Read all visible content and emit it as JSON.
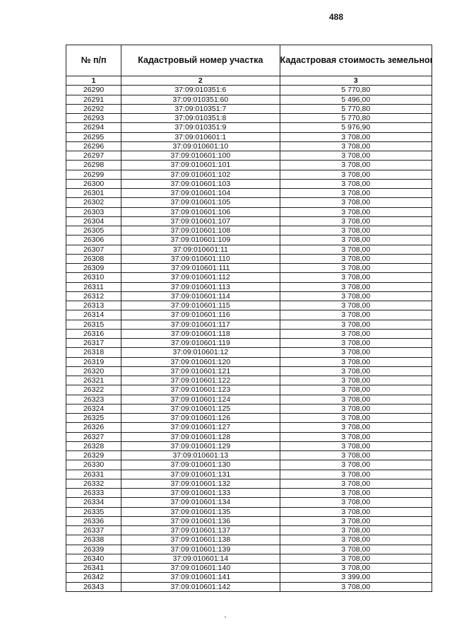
{
  "page_number": "488",
  "table": {
    "headers": [
      "№ п/п",
      "Кадастровый номер участка",
      "Кадастровая стоимость земельного участка, руб."
    ],
    "index_row": [
      "1",
      "2",
      "3"
    ],
    "rows": [
      [
        "26290",
        "37:09:010351:6",
        "5 770,80"
      ],
      [
        "26291",
        "37:09:010351:60",
        "5 496,00"
      ],
      [
        "26292",
        "37:09:010351:7",
        "5 770,80"
      ],
      [
        "26293",
        "37:09:010351:8",
        "5 770,80"
      ],
      [
        "26294",
        "37:09:010351:9",
        "5 976,90"
      ],
      [
        "26295",
        "37:09:010601:1",
        "3 708,00"
      ],
      [
        "26296",
        "37:09:010601:10",
        "3 708,00"
      ],
      [
        "26297",
        "37:09:010601:100",
        "3 708,00"
      ],
      [
        "26298",
        "37:09:010601:101",
        "3 708,00"
      ],
      [
        "26299",
        "37:09:010601:102",
        "3 708,00"
      ],
      [
        "26300",
        "37:09:010601:103",
        "3 708,00"
      ],
      [
        "26301",
        "37:09:010601:104",
        "3 708,00"
      ],
      [
        "26302",
        "37:09:010601:105",
        "3 708,00"
      ],
      [
        "26303",
        "37:09:010601:106",
        "3 708,00"
      ],
      [
        "26304",
        "37:09:010601:107",
        "3 708,00"
      ],
      [
        "26305",
        "37:09:010601:108",
        "3 708,00"
      ],
      [
        "26306",
        "37:09:010601:109",
        "3 708,00"
      ],
      [
        "26307",
        "37:09:010601:11",
        "3 708,00"
      ],
      [
        "26308",
        "37:09:010601:110",
        "3 708,00"
      ],
      [
        "26309",
        "37:09:010601:111",
        "3 708,00"
      ],
      [
        "26310",
        "37:09:010601:112",
        "3 708,00"
      ],
      [
        "26311",
        "37:09:010601:113",
        "3 708,00"
      ],
      [
        "26312",
        "37:09:010601:114",
        "3 708,00"
      ],
      [
        "26313",
        "37:09:010601:115",
        "3 708,00"
      ],
      [
        "26314",
        "37:09:010601:116",
        "3 708,00"
      ],
      [
        "26315",
        "37:09:010601:117",
        "3 708,00"
      ],
      [
        "26316",
        "37:09:010601:118",
        "3 708,00"
      ],
      [
        "26317",
        "37:09:010601:119",
        "3 708,00"
      ],
      [
        "26318",
        "37:09:010601:12",
        "3 708,00"
      ],
      [
        "26319",
        "37:09:010601:120",
        "3 708,00"
      ],
      [
        "26320",
        "37:09:010601:121",
        "3 708,00"
      ],
      [
        "26321",
        "37:09:010601:122",
        "3 708,00"
      ],
      [
        "26322",
        "37:09:010601:123",
        "3 708,00"
      ],
      [
        "26323",
        "37:09:010601:124",
        "3 708,00"
      ],
      [
        "26324",
        "37:09:010601:125",
        "3 708,00"
      ],
      [
        "26325",
        "37:09:010601:126",
        "3 708,00"
      ],
      [
        "26326",
        "37:09:010601:127",
        "3 708,00"
      ],
      [
        "26327",
        "37:09:010601:128",
        "3 708,00"
      ],
      [
        "26328",
        "37:09:010601:129",
        "3 708,00"
      ],
      [
        "26329",
        "37:09:010601:13",
        "3 708,00"
      ],
      [
        "26330",
        "37:09:010601:130",
        "3 708,00"
      ],
      [
        "26331",
        "37:09:010601:131",
        "3 708,00"
      ],
      [
        "26332",
        "37:09:010601:132",
        "3 708,00"
      ],
      [
        "26333",
        "37:09:010601:133",
        "3 708,00"
      ],
      [
        "26334",
        "37:09:010601:134",
        "3 708,00"
      ],
      [
        "26335",
        "37:09:010601:135",
        "3 708,00"
      ],
      [
        "26336",
        "37:09:010601:136",
        "3 708,00"
      ],
      [
        "26337",
        "37:09:010601:137",
        "3 708,00"
      ],
      [
        "26338",
        "37:09:010601:138",
        "3 708,00"
      ],
      [
        "26339",
        "37:09:010601:139",
        "3 708,00"
      ],
      [
        "26340",
        "37:09:010601:14",
        "3 708,00"
      ],
      [
        "26341",
        "37:09:010601:140",
        "3 708,00"
      ],
      [
        "26342",
        "37:09:010601:141",
        "3 399,00"
      ],
      [
        "26343",
        "37:09:010601:142",
        "3 708,00"
      ]
    ]
  }
}
